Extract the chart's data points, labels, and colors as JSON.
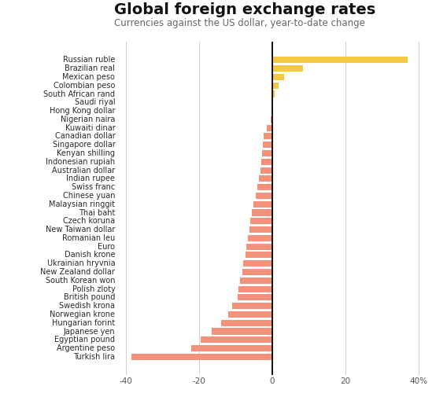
{
  "title": "Global foreign exchange rates",
  "subtitle": "Currencies against the US dollar, year-to-date change",
  "categories": [
    "Russian ruble",
    "Brazilian real",
    "Mexican peso",
    "Colombian peso",
    "South African rand",
    "Saudi riyal",
    "Hong Kong dollar",
    "Nigerian naira",
    "Kuwaiti dinar",
    "Canadian dollar",
    "Singapore dollar",
    "Kenyan shilling",
    "Indonesian rupiah",
    "Australian dollar",
    "Indian rupee",
    "Swiss franc",
    "Chinese yuan",
    "Malaysian ringgit",
    "Thai baht",
    "Czech koruna",
    "New Taiwan dollar",
    "Romanian leu",
    "Euro",
    "Danish krone",
    "Ukrainian hryvnia",
    "New Zealand dollar",
    "South Korean won",
    "Polish zloty",
    "British pound",
    "Swedish krona",
    "Norwegian krone",
    "Hungarian forint",
    "Japanese yen",
    "Egyptian pound",
    "Argentine peso",
    "Turkish lira"
  ],
  "values": [
    37.0,
    8.5,
    3.2,
    1.8,
    0.8,
    0.1,
    -0.2,
    -0.3,
    -1.5,
    -2.2,
    -2.5,
    -2.8,
    -3.0,
    -3.2,
    -3.5,
    -4.0,
    -4.5,
    -5.0,
    -5.5,
    -6.0,
    -6.2,
    -6.5,
    -7.0,
    -7.2,
    -7.8,
    -8.2,
    -8.8,
    -9.2,
    -9.5,
    -11.0,
    -12.0,
    -14.0,
    -16.5,
    -19.5,
    -22.0,
    -38.5
  ],
  "positive_color": "#f5c842",
  "negative_color": "#f4917a",
  "xlim": [
    -42,
    46
  ],
  "xticks": [
    -40,
    -20,
    0,
    20,
    40
  ],
  "xtick_labels": [
    "-40",
    "-20",
    "0",
    "20",
    "40%"
  ],
  "background_color": "#ffffff",
  "grid_color": "#d0d0d0",
  "title_fontsize": 14,
  "subtitle_fontsize": 8.5,
  "label_fontsize": 7.0,
  "tick_fontsize": 7.5,
  "bar_height": 0.75
}
